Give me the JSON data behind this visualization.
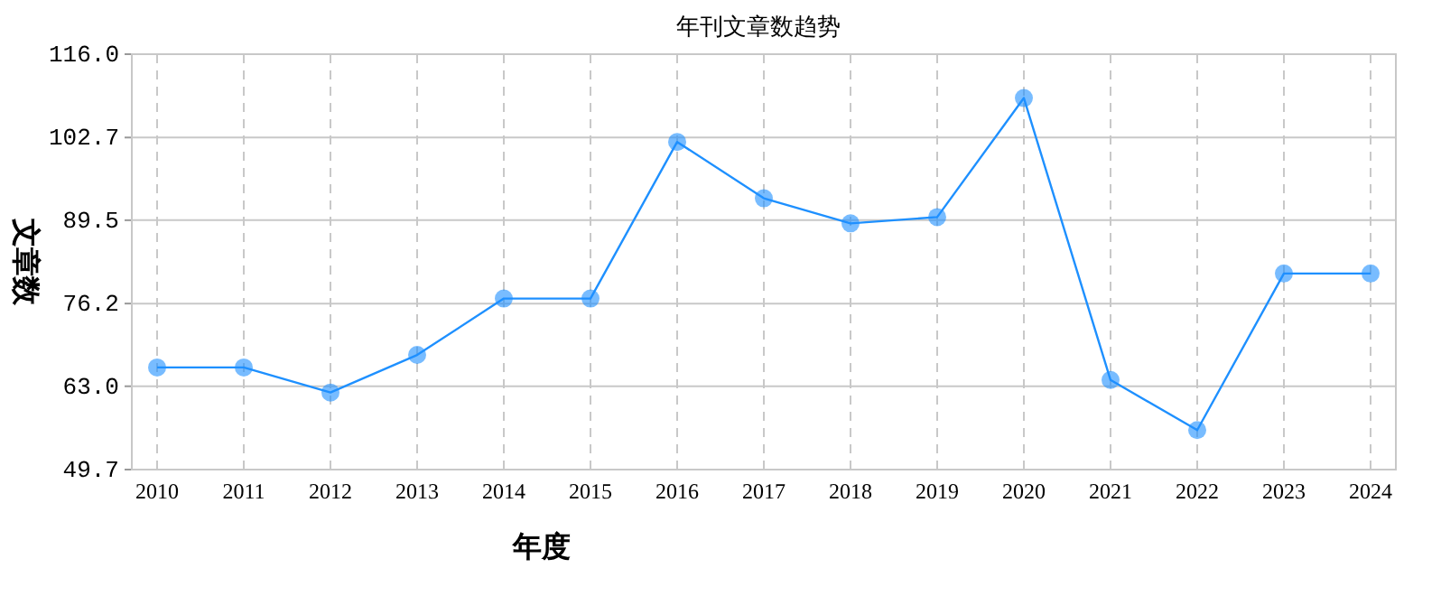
{
  "chart_data": {
    "type": "line",
    "title": "年刊文章数趋势",
    "xlabel": "年度",
    "ylabel": "文章数",
    "categories": [
      "2010",
      "2011",
      "2012",
      "2013",
      "2014",
      "2015",
      "2016",
      "2017",
      "2018",
      "2019",
      "2020",
      "2021",
      "2022",
      "2023",
      "2024"
    ],
    "series": [
      {
        "color": "#1e90ff",
        "values": [
          66,
          66,
          62,
          68,
          77,
          77,
          102,
          93,
          89,
          90,
          109,
          64,
          56,
          81,
          81
        ]
      }
    ],
    "ylim": [
      49.7,
      116
    ],
    "yticks": [
      {
        "value": 49.7,
        "label": "49.7"
      },
      {
        "value": 63,
        "label": "63.0"
      },
      {
        "value": 76.2,
        "label": "76.2"
      },
      {
        "value": 89.5,
        "label": "89.5"
      },
      {
        "value": 102.7,
        "label": "102.7"
      },
      {
        "value": 116,
        "label": "116.0"
      }
    ],
    "grid": true,
    "marker": "circle",
    "line_style": "solid"
  }
}
